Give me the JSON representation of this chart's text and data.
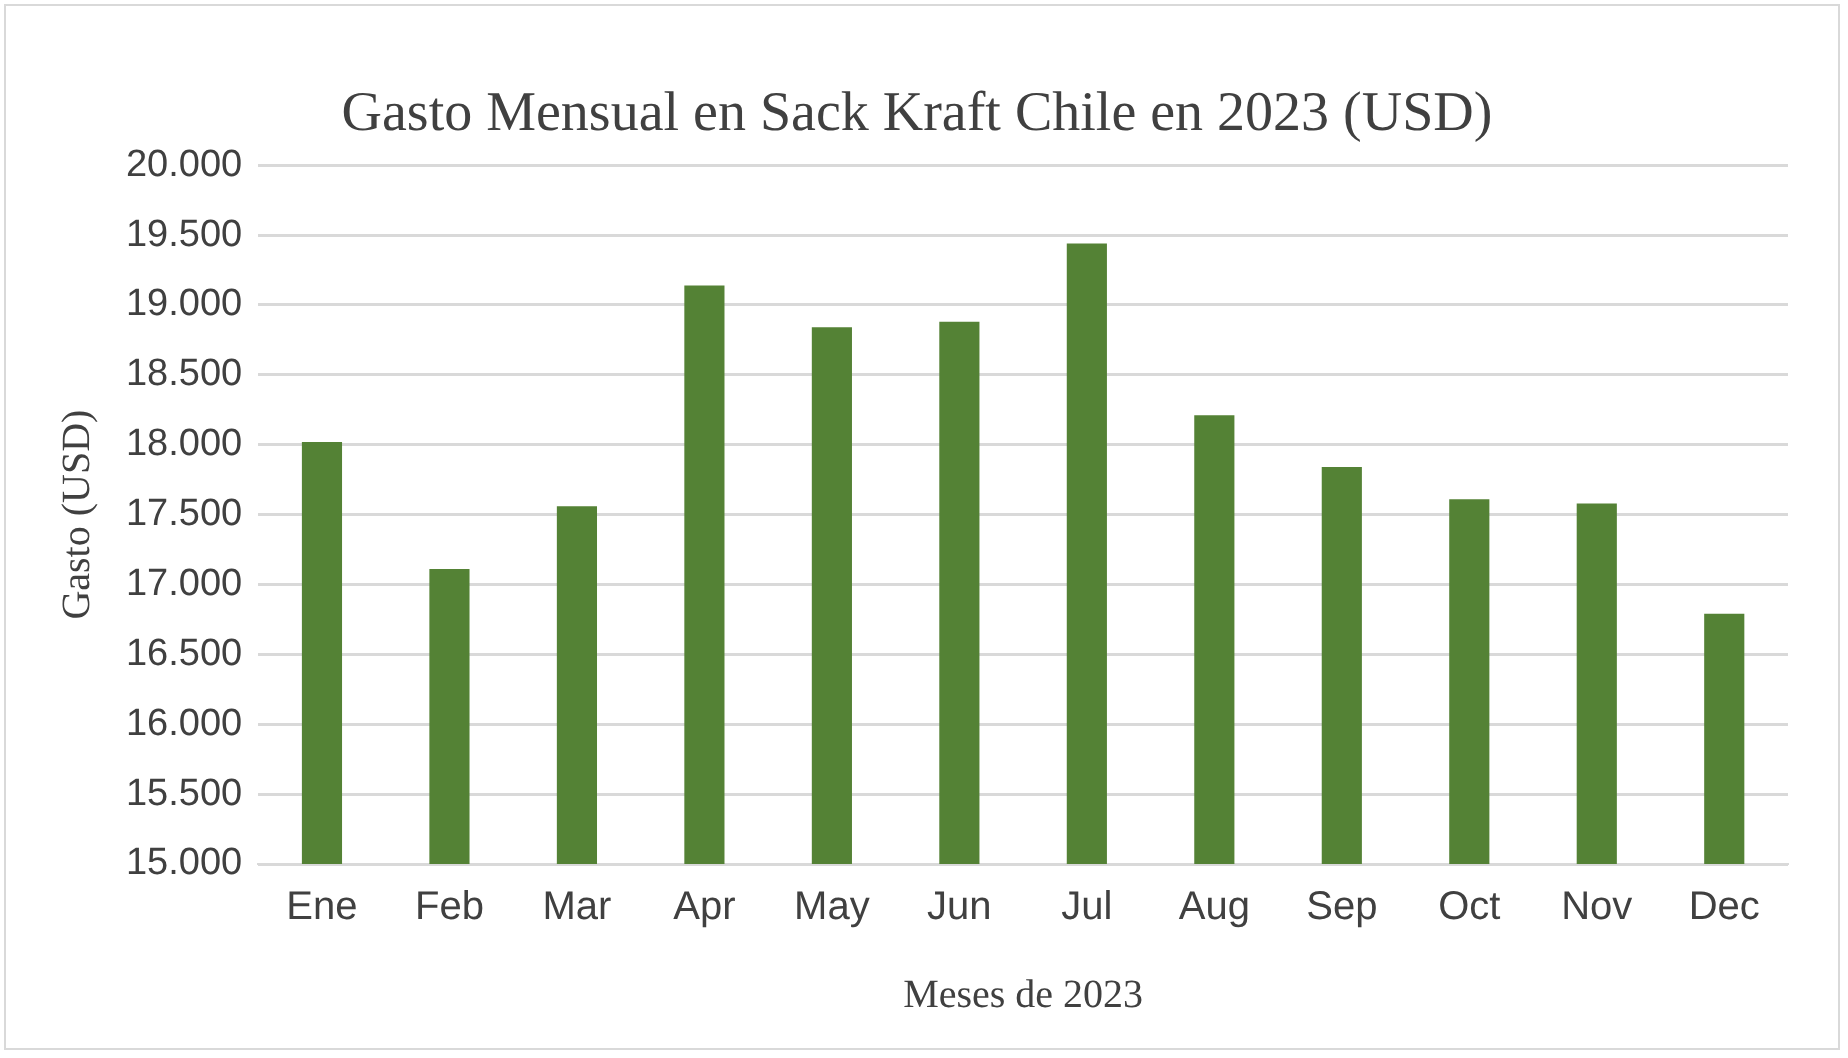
{
  "chart_data": {
    "type": "bar",
    "title": "Gasto Mensual en Sack Kraft Chile en 2023 (USD)",
    "xlabel": "Meses de 2023",
    "ylabel": "Gasto (USD)",
    "categories": [
      "Ene",
      "Feb",
      "Mar",
      "Apr",
      "May",
      "Jun",
      "Jul",
      "Aug",
      "Sep",
      "Oct",
      "Nov",
      "Dec"
    ],
    "values": [
      18020,
      17110,
      17560,
      19140,
      18840,
      18880,
      19440,
      18210,
      17840,
      17610,
      17580,
      16790
    ],
    "color": "#548235",
    "ylim": [
      15000,
      20000
    ],
    "yticks": [
      {
        "value": 15000,
        "label": "15.000"
      },
      {
        "value": 15500,
        "label": "15.500"
      },
      {
        "value": 16000,
        "label": "16.000"
      },
      {
        "value": 16500,
        "label": "16.500"
      },
      {
        "value": 17000,
        "label": "17.000"
      },
      {
        "value": 17500,
        "label": "17.500"
      },
      {
        "value": 18000,
        "label": "18.000"
      },
      {
        "value": 18500,
        "label": "18.500"
      },
      {
        "value": 19000,
        "label": "19.000"
      },
      {
        "value": 19500,
        "label": "19.500"
      },
      {
        "value": 20000,
        "label": "20.000"
      }
    ],
    "grid": "y",
    "legend": false
  }
}
